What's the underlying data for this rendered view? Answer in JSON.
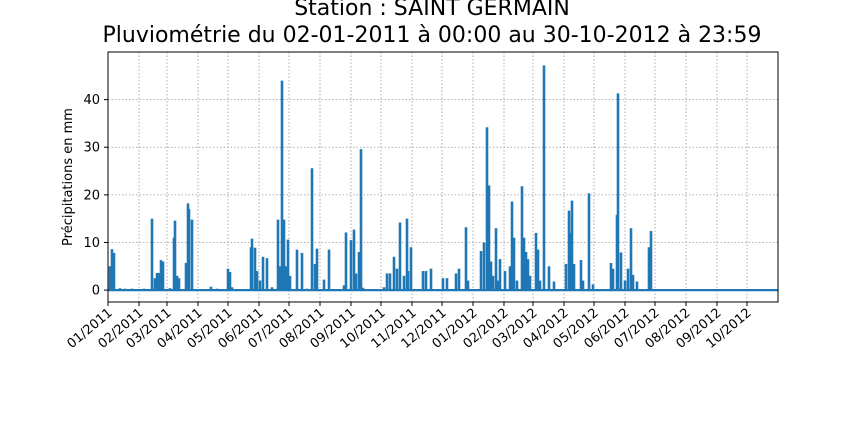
{
  "chart_data": {
    "type": "bar",
    "title": "Station : SAINT GERMAIN",
    "subtitle": "Pluviométrie du 02-01-2011 à 00:00 au 30-10-2012 à 23:59",
    "xlabel": "",
    "ylabel": "Précipitations en mm",
    "ylim": [
      -2.5,
      50
    ],
    "yticks": [
      0,
      10,
      20,
      30,
      40
    ],
    "xlim": [
      "2011-01-01",
      "2012-11-01"
    ],
    "xticks": [
      "01/2011",
      "02/2011",
      "03/2011",
      "04/2011",
      "05/2011",
      "06/2011",
      "07/2011",
      "08/2011",
      "09/2011",
      "10/2011",
      "11/2011",
      "12/2011",
      "01/2012",
      "02/2012",
      "03/2012",
      "04/2012",
      "05/2012",
      "06/2012",
      "07/2012",
      "08/2012",
      "09/2012",
      "10/2012"
    ],
    "grid": true,
    "color": "#1f77b4",
    "series": [
      {
        "points": [
          [
            "2011-01-03",
            5
          ],
          [
            "2011-01-05",
            8.6
          ],
          [
            "2011-01-07",
            7.8
          ],
          [
            "2011-01-13",
            0.4
          ],
          [
            "2011-01-18",
            0.3
          ],
          [
            "2011-01-25",
            0.3
          ],
          [
            "2011-02-06",
            0.3
          ],
          [
            "2011-02-11",
            0.2
          ],
          [
            "2011-02-14",
            15
          ],
          [
            "2011-02-17",
            2.5
          ],
          [
            "2011-02-19",
            3.6
          ],
          [
            "2011-02-21",
            3.6
          ],
          [
            "2011-02-23",
            6.3
          ],
          [
            "2011-02-25",
            6
          ],
          [
            "2011-03-04",
            0.4
          ],
          [
            "2011-03-08",
            11
          ],
          [
            "2011-03-09",
            14.6
          ],
          [
            "2011-03-11",
            3
          ],
          [
            "2011-03-13",
            2.5
          ],
          [
            "2011-03-20",
            5.7
          ],
          [
            "2011-03-22",
            18.2
          ],
          [
            "2011-03-23",
            17
          ],
          [
            "2011-03-26",
            14.8
          ],
          [
            "2011-04-14",
            0.7
          ],
          [
            "2011-04-20",
            0.3
          ],
          [
            "2011-04-26",
            0.2
          ],
          [
            "2011-05-01",
            4.5
          ],
          [
            "2011-05-03",
            3.8
          ],
          [
            "2011-05-05",
            0.6
          ],
          [
            "2011-05-14",
            0.2
          ],
          [
            "2011-05-24",
            9
          ],
          [
            "2011-05-25",
            10.8
          ],
          [
            "2011-05-28",
            8.9
          ],
          [
            "2011-05-30",
            4
          ],
          [
            "2011-06-02",
            2
          ],
          [
            "2011-06-05",
            7
          ],
          [
            "2011-06-09",
            6.7
          ],
          [
            "2011-06-14",
            0.6
          ],
          [
            "2011-06-20",
            14.8
          ],
          [
            "2011-06-22",
            5
          ],
          [
            "2011-06-24",
            44
          ],
          [
            "2011-06-26",
            14.8
          ],
          [
            "2011-06-28",
            5
          ],
          [
            "2011-06-30",
            10.6
          ],
          [
            "2011-07-02",
            3
          ],
          [
            "2011-07-09",
            8.5
          ],
          [
            "2011-07-14",
            7.8
          ],
          [
            "2011-07-19",
            0.3
          ],
          [
            "2011-07-24",
            25.6
          ],
          [
            "2011-07-27",
            5.5
          ],
          [
            "2011-07-29",
            8.7
          ],
          [
            "2011-08-05",
            2.2
          ],
          [
            "2011-08-10",
            8.5
          ],
          [
            "2011-08-25",
            1
          ],
          [
            "2011-08-27",
            12.1
          ],
          [
            "2011-09-01",
            10.5
          ],
          [
            "2011-09-04",
            12.7
          ],
          [
            "2011-09-06",
            3.5
          ],
          [
            "2011-09-09",
            8
          ],
          [
            "2011-09-11",
            29.6
          ],
          [
            "2011-09-13",
            0.5
          ],
          [
            "2011-10-04",
            0.6
          ],
          [
            "2011-10-07",
            3.5
          ],
          [
            "2011-10-10",
            3.5
          ],
          [
            "2011-10-14",
            7
          ],
          [
            "2011-10-17",
            4.5
          ],
          [
            "2011-10-20",
            14.2
          ],
          [
            "2011-10-24",
            3
          ],
          [
            "2011-10-27",
            15
          ],
          [
            "2011-10-28",
            4
          ],
          [
            "2011-10-31",
            9
          ],
          [
            "2011-11-12",
            4
          ],
          [
            "2011-11-15",
            4
          ],
          [
            "2011-11-20",
            4.5
          ],
          [
            "2011-11-25",
            0.2
          ],
          [
            "2011-12-02",
            2.5
          ],
          [
            "2011-12-06",
            2.5
          ],
          [
            "2011-12-15",
            3.5
          ],
          [
            "2011-12-18",
            4.5
          ],
          [
            "2011-12-25",
            13.2
          ],
          [
            "2011-12-27",
            2
          ],
          [
            "2012-01-09",
            8.2
          ],
          [
            "2012-01-12",
            10
          ],
          [
            "2012-01-15",
            34.2
          ],
          [
            "2012-01-17",
            22
          ],
          [
            "2012-01-19",
            6
          ],
          [
            "2012-01-21",
            3
          ],
          [
            "2012-01-24",
            13
          ],
          [
            "2012-01-26",
            2
          ],
          [
            "2012-01-28",
            6.5
          ],
          [
            "2012-02-02",
            4
          ],
          [
            "2012-02-07",
            5
          ],
          [
            "2012-02-09",
            18.6
          ],
          [
            "2012-02-11",
            11
          ],
          [
            "2012-02-14",
            2
          ],
          [
            "2012-02-19",
            21.8
          ],
          [
            "2012-02-21",
            11
          ],
          [
            "2012-02-23",
            8
          ],
          [
            "2012-02-25",
            6.5
          ],
          [
            "2012-02-27",
            3
          ],
          [
            "2012-03-04",
            12
          ],
          [
            "2012-03-06",
            8.5
          ],
          [
            "2012-03-08",
            2
          ],
          [
            "2012-03-12",
            47.2
          ],
          [
            "2012-03-17",
            5
          ],
          [
            "2012-03-22",
            1.8
          ],
          [
            "2012-04-03",
            5.5
          ],
          [
            "2012-04-06",
            16.7
          ],
          [
            "2012-04-07",
            12
          ],
          [
            "2012-04-09",
            18.8
          ],
          [
            "2012-04-11",
            5.5
          ],
          [
            "2012-04-18",
            6.3
          ],
          [
            "2012-04-20",
            2
          ],
          [
            "2012-04-26",
            20.3
          ],
          [
            "2012-04-30",
            1.2
          ],
          [
            "2012-05-18",
            5.7
          ],
          [
            "2012-05-20",
            4.5
          ],
          [
            "2012-05-24",
            15.8
          ],
          [
            "2012-05-25",
            41.3
          ],
          [
            "2012-05-28",
            7.9
          ],
          [
            "2012-06-01",
            2
          ],
          [
            "2012-06-04",
            4.5
          ],
          [
            "2012-06-07",
            13
          ],
          [
            "2012-06-09",
            3.2
          ],
          [
            "2012-06-13",
            1.8
          ],
          [
            "2012-06-25",
            9
          ],
          [
            "2012-06-27",
            12.4
          ]
        ]
      }
    ]
  }
}
